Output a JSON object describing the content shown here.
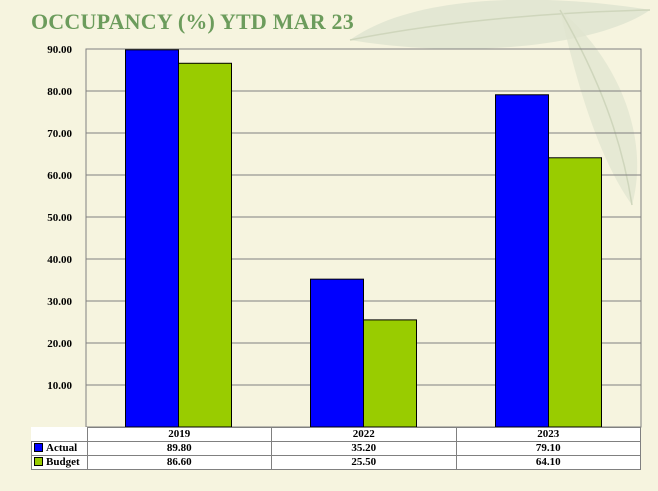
{
  "title": "OCCUPANCY (%) YTD MAR 23",
  "chart_data": {
    "type": "bar",
    "title": "OCCUPANCY (%) YTD MAR 23",
    "categories": [
      "2019",
      "2022",
      "2023"
    ],
    "series": [
      {
        "name": "Actual",
        "values": [
          89.8,
          35.2,
          79.1
        ],
        "color": "#0000ff"
      },
      {
        "name": "Budget",
        "values": [
          86.6,
          25.5,
          64.1
        ],
        "color": "#99cc00"
      }
    ],
    "ylim": [
      0,
      90
    ],
    "yticks": [
      "-",
      "10.00",
      "20.00",
      "30.00",
      "40.00",
      "50.00",
      "60.00",
      "70.00",
      "80.00",
      "90.00"
    ],
    "grid": true,
    "legend": "data-table"
  },
  "table": {
    "rows": [
      {
        "label": "Actual",
        "values": [
          "89.80",
          "35.20",
          "79.10"
        ]
      },
      {
        "label": "Budget",
        "values": [
          "86.60",
          "25.50",
          "64.10"
        ]
      }
    ]
  }
}
